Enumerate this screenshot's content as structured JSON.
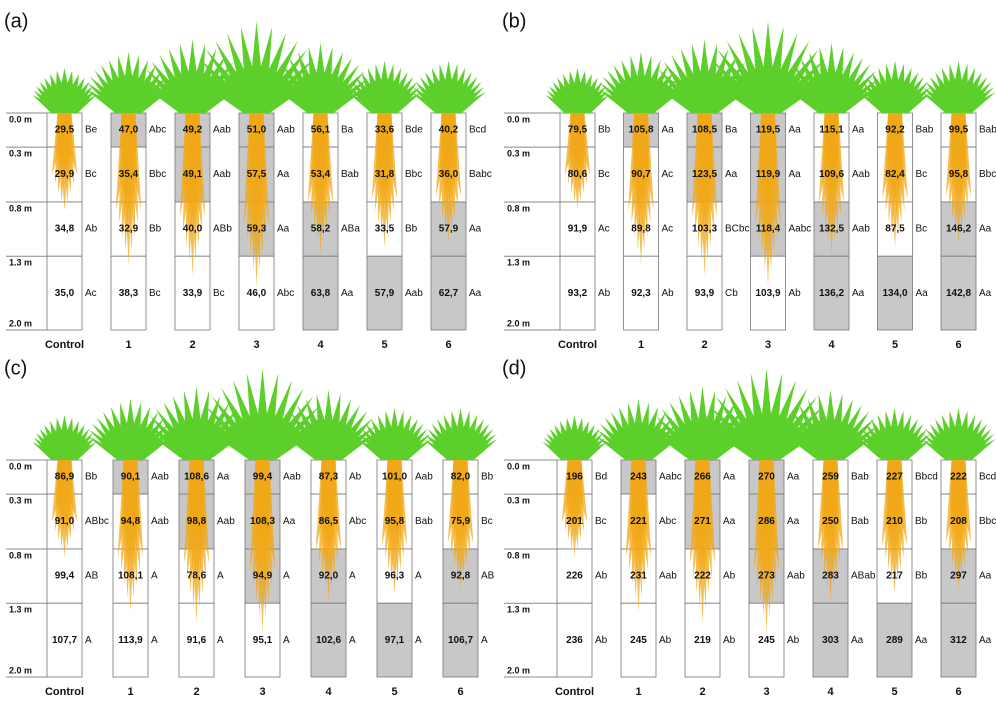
{
  "depths": [
    "0.0 m",
    "0.3 m",
    "0.8 m",
    "1.3 m",
    "2.0 m"
  ],
  "treatments": [
    "Control",
    "1",
    "2",
    "3",
    "4",
    "5",
    "6"
  ],
  "shading": [
    [
      false,
      false,
      false,
      false
    ],
    [
      true,
      false,
      false,
      false
    ],
    [
      true,
      true,
      false,
      false
    ],
    [
      true,
      true,
      true,
      false
    ],
    [
      false,
      false,
      true,
      true
    ],
    [
      false,
      false,
      false,
      true
    ],
    [
      false,
      false,
      true,
      true
    ]
  ],
  "colors": {
    "shade": "#c8c8c8",
    "grass": "#5ccf2a",
    "root": "#f0a818"
  },
  "panels": [
    {
      "label": "(a)",
      "columns": [
        [
          [
            "29,5",
            "Be"
          ],
          [
            "29,9",
            "Bc"
          ],
          [
            "34,8",
            "Ab"
          ],
          [
            "35,0",
            "Ac"
          ]
        ],
        [
          [
            "47,0",
            "Abc"
          ],
          [
            "35,4",
            "Bbc"
          ],
          [
            "32,9",
            "Bb"
          ],
          [
            "38,3",
            "Bc"
          ]
        ],
        [
          [
            "49,2",
            "Aab"
          ],
          [
            "49,1",
            "Aab"
          ],
          [
            "40,0",
            "ABb"
          ],
          [
            "33,9",
            "Bc"
          ]
        ],
        [
          [
            "51,0",
            "Aab"
          ],
          [
            "57,5",
            "Aa"
          ],
          [
            "59,3",
            "Aa"
          ],
          [
            "46,0",
            "Abc"
          ]
        ],
        [
          [
            "56,1",
            "Ba"
          ],
          [
            "53,4",
            "Bab"
          ],
          [
            "58,2",
            "ABa"
          ],
          [
            "63,8",
            "Aa"
          ]
        ],
        [
          [
            "33,6",
            "Bde"
          ],
          [
            "31,8",
            "Bbc"
          ],
          [
            "33,5",
            "Bb"
          ],
          [
            "57,9",
            "Aab"
          ]
        ],
        [
          [
            "40,2",
            "Bcd"
          ],
          [
            "36,0",
            "Babc"
          ],
          [
            "57,9",
            "Aa"
          ],
          [
            "62,7",
            "Aa"
          ]
        ]
      ]
    },
    {
      "label": "(b)",
      "columns": [
        [
          [
            "79,5",
            "Bb"
          ],
          [
            "80,6",
            "Bc"
          ],
          [
            "91,9",
            "Ac"
          ],
          [
            "93,2",
            "Ab"
          ]
        ],
        [
          [
            "105,8",
            "Aa"
          ],
          [
            "90,7",
            "Ac"
          ],
          [
            "89,8",
            "Ac"
          ],
          [
            "92,3",
            "Ab"
          ]
        ],
        [
          [
            "108,5",
            "Ba"
          ],
          [
            "123,5",
            "Aa"
          ],
          [
            "103,3",
            "BCbc"
          ],
          [
            "93,9",
            "Cb"
          ]
        ],
        [
          [
            "119,5",
            "Aa"
          ],
          [
            "119,9",
            "Aa"
          ],
          [
            "118,4",
            "Aabc"
          ],
          [
            "103,9",
            "Ab"
          ]
        ],
        [
          [
            "115,1",
            "Aa"
          ],
          [
            "109,6",
            "Aab"
          ],
          [
            "132,5",
            "Aab"
          ],
          [
            "136,2",
            "Aa"
          ]
        ],
        [
          [
            "92,2",
            "Bab"
          ],
          [
            "82,4",
            "Bc"
          ],
          [
            "87,5",
            "Bc"
          ],
          [
            "134,0",
            "Aa"
          ]
        ],
        [
          [
            "99,5",
            "Bab"
          ],
          [
            "95,8",
            "Bbc"
          ],
          [
            "146,2",
            "Aa"
          ],
          [
            "142,8",
            "Aa"
          ]
        ]
      ]
    },
    {
      "label": "(c)",
      "columns": [
        [
          [
            "86,9",
            "Bb"
          ],
          [
            "91,0",
            "ABbc"
          ],
          [
            "99,4",
            "AB"
          ],
          [
            "107,7",
            "A"
          ]
        ],
        [
          [
            "90,1",
            "Aab"
          ],
          [
            "94,8",
            "Aab"
          ],
          [
            "108,1",
            "A"
          ],
          [
            "113,9",
            "A"
          ]
        ],
        [
          [
            "108,6",
            "Aa"
          ],
          [
            "98,8",
            "Aab"
          ],
          [
            "78,6",
            "A"
          ],
          [
            "91,6",
            "A"
          ]
        ],
        [
          [
            "99,4",
            "Aab"
          ],
          [
            "108,3",
            "Aa"
          ],
          [
            "94,9",
            "A"
          ],
          [
            "95,1",
            "A"
          ]
        ],
        [
          [
            "87,3",
            "Ab"
          ],
          [
            "86,5",
            "Abc"
          ],
          [
            "92,0",
            "A"
          ],
          [
            "102,6",
            "A"
          ]
        ],
        [
          [
            "101,0",
            "Aab"
          ],
          [
            "95,8",
            "Bab"
          ],
          [
            "96,3",
            "A"
          ],
          [
            "97,1",
            "A"
          ]
        ],
        [
          [
            "82,0",
            "Bb"
          ],
          [
            "75,9",
            "Bc"
          ],
          [
            "92,8",
            "AB"
          ],
          [
            "106,7",
            "A"
          ]
        ]
      ]
    },
    {
      "label": "(d)",
      "columns": [
        [
          [
            "196",
            "Bd"
          ],
          [
            "201",
            "Bc"
          ],
          [
            "226",
            "Ab"
          ],
          [
            "236",
            "Ab"
          ]
        ],
        [
          [
            "243",
            "Aabc"
          ],
          [
            "221",
            "Abc"
          ],
          [
            "231",
            "Aab"
          ],
          [
            "245",
            "Ab"
          ]
        ],
        [
          [
            "266",
            "Aa"
          ],
          [
            "271",
            "Aa"
          ],
          [
            "222",
            "Ab"
          ],
          [
            "219",
            "Ab"
          ]
        ],
        [
          [
            "270",
            "Aa"
          ],
          [
            "286",
            "Aa"
          ],
          [
            "273",
            "Aab"
          ],
          [
            "245",
            "Ab"
          ]
        ],
        [
          [
            "259",
            "Bab"
          ],
          [
            "250",
            "Bab"
          ],
          [
            "283",
            "ABab"
          ],
          [
            "303",
            "Aa"
          ]
        ],
        [
          [
            "227",
            "Bbcd"
          ],
          [
            "210",
            "Bb"
          ],
          [
            "217",
            "Bb"
          ],
          [
            "289",
            "Aa"
          ]
        ],
        [
          [
            "222",
            "Bcd"
          ],
          [
            "208",
            "Bbc"
          ],
          [
            "297",
            "Aa"
          ],
          [
            "312",
            "Aa"
          ]
        ]
      ]
    }
  ]
}
